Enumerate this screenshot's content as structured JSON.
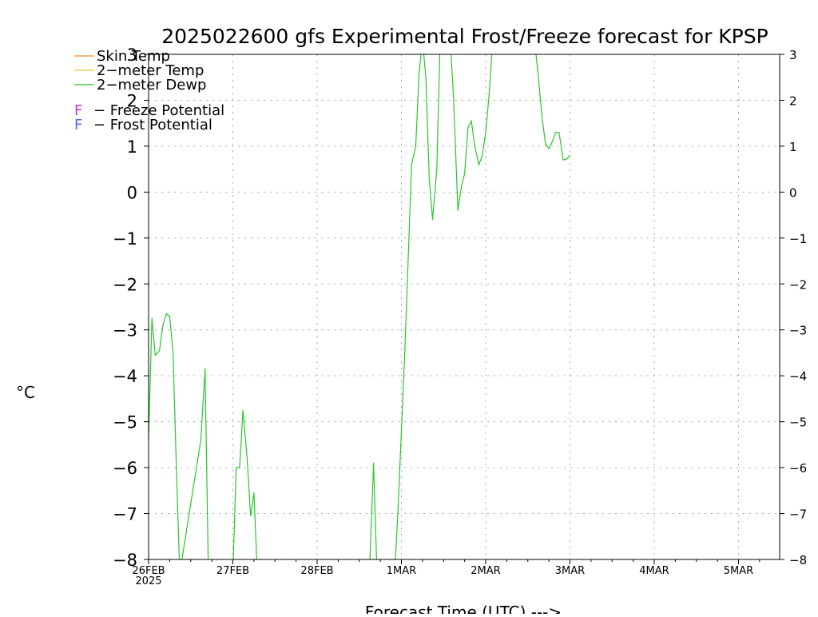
{
  "chart_data": {
    "type": "line",
    "title": "2025022600 gfs Experimental Frost/Freeze forecast for KPSP",
    "xlabel": "Forecast Time (UTC) --->",
    "ylabel": "°C",
    "ylim": [
      -8,
      3
    ],
    "xlim": [
      0,
      7.5
    ],
    "yticks": [
      "3",
      "2",
      "1",
      "0",
      "−1",
      "−2",
      "−3",
      "−4",
      "−5",
      "−6",
      "−7",
      "−8"
    ],
    "xticks": [
      "26FEB",
      "27FEB",
      "28FEB",
      "1MAR",
      "2MAR",
      "3MAR",
      "4MAR",
      "5MAR"
    ],
    "xtick_sublabel": "2025",
    "grid": true,
    "legend_position": "top-left",
    "legend": [
      {
        "label": "Skin Temp",
        "color": "#f08c28"
      },
      {
        "label": "2−meter Temp",
        "color": "#e6c832"
      },
      {
        "label": "2−meter Dewp",
        "color": "#28c828"
      }
    ],
    "potential_legend": [
      {
        "marker": "F",
        "text": "− Freeze Potential",
        "color": "#c832c8"
      },
      {
        "marker": "F",
        "text": "− Frost Potential",
        "color": "#5064f0"
      }
    ],
    "series": [
      {
        "name": "2−meter Dewp",
        "color": "#28c828",
        "points": [
          [
            0.0,
            -5.4
          ],
          [
            0.04,
            -2.75
          ],
          [
            0.08,
            -3.55
          ],
          [
            0.13,
            -3.45
          ],
          [
            0.17,
            -2.9
          ],
          [
            0.21,
            -2.65
          ],
          [
            0.25,
            -2.7
          ],
          [
            0.29,
            -3.5
          ],
          [
            0.33,
            -6.0
          ],
          [
            0.37,
            -8.3
          ],
          [
            0.62,
            -5.4
          ],
          [
            0.67,
            -3.85
          ],
          [
            0.71,
            -8.3
          ],
          [
            1.0,
            -8.3
          ],
          [
            1.04,
            -6.0
          ],
          [
            1.08,
            -6.0
          ],
          [
            1.12,
            -4.75
          ],
          [
            1.17,
            -5.8
          ],
          [
            1.21,
            -7.05
          ],
          [
            1.25,
            -6.55
          ],
          [
            1.29,
            -8.3
          ],
          [
            2.62,
            -8.3
          ],
          [
            2.67,
            -5.9
          ],
          [
            2.71,
            -8.3
          ],
          [
            2.92,
            -8.3
          ],
          [
            2.96,
            -6.9
          ],
          [
            3.04,
            -3.5
          ],
          [
            3.08,
            -1.5
          ],
          [
            3.12,
            0.6
          ],
          [
            3.17,
            1.0
          ],
          [
            3.21,
            2.6
          ],
          [
            3.25,
            3.3
          ],
          [
            3.29,
            2.5
          ],
          [
            3.33,
            0.3
          ],
          [
            3.37,
            -0.6
          ],
          [
            3.42,
            0.5
          ],
          [
            3.46,
            3.3
          ],
          [
            3.5,
            3.3
          ],
          [
            3.58,
            3.3
          ],
          [
            3.62,
            2.0
          ],
          [
            3.67,
            -0.4
          ],
          [
            3.71,
            0.1
          ],
          [
            3.75,
            0.4
          ],
          [
            3.79,
            1.4
          ],
          [
            3.83,
            1.55
          ],
          [
            3.87,
            1.0
          ],
          [
            3.92,
            0.6
          ],
          [
            3.96,
            0.8
          ],
          [
            4.0,
            1.3
          ],
          [
            4.04,
            2.1
          ],
          [
            4.08,
            3.2
          ],
          [
            4.12,
            3.3
          ],
          [
            4.58,
            3.3
          ],
          [
            4.62,
            2.6
          ],
          [
            4.67,
            1.6
          ],
          [
            4.71,
            1.05
          ],
          [
            4.75,
            0.95
          ],
          [
            4.79,
            1.1
          ],
          [
            4.83,
            1.3
          ],
          [
            4.87,
            1.3
          ],
          [
            4.92,
            0.7
          ],
          [
            4.96,
            0.72
          ],
          [
            5.0,
            0.8
          ]
        ]
      }
    ]
  }
}
